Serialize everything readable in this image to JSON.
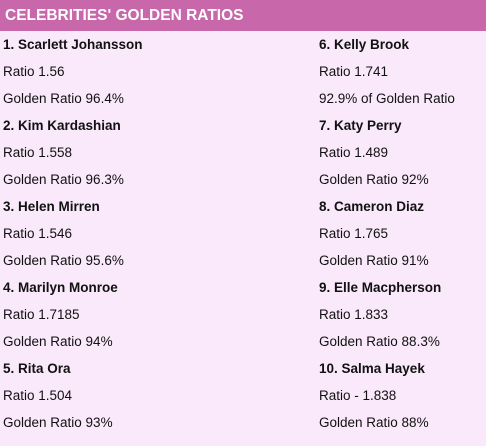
{
  "header": {
    "title": "CELEBRITIES' GOLDEN RATIOS"
  },
  "colors": {
    "header_bg": "#c867aa",
    "panel_bg": "#f9e9fa",
    "header_text": "#ffffff"
  },
  "left_column": [
    {
      "name": "1. Scarlett Johansson",
      "ratio": "Ratio 1.56",
      "golden": "Golden Ratio 96.4%"
    },
    {
      "name": "2. Kim Kardashian",
      "ratio": "Ratio 1.558",
      "golden": "Golden Ratio 96.3%"
    },
    {
      "name": "3. Helen Mirren",
      "ratio": "Ratio 1.546",
      "golden": "Golden Ratio 95.6%"
    },
    {
      "name": "4. Marilyn Monroe",
      "ratio": "Ratio 1.7185",
      "golden": "Golden Ratio 94%"
    },
    {
      "name": "5. Rita Ora",
      "ratio": "Ratio 1.504",
      "golden": "Golden Ratio 93%"
    }
  ],
  "right_column": [
    {
      "name": "6. Kelly Brook",
      "ratio": "Ratio 1.741",
      "golden": "92.9% of Golden Ratio"
    },
    {
      "name": "7. Katy Perry",
      "ratio": "Ratio 1.489",
      "golden": "Golden Ratio 92%"
    },
    {
      "name": "8. Cameron Diaz",
      "ratio": "Ratio 1.765",
      "golden": "Golden Ratio 91%"
    },
    {
      "name": "9. Elle Macpherson",
      "ratio": "Ratio 1.833",
      "golden": "Golden Ratio 88.3%"
    },
    {
      "name": "10. Salma Hayek",
      "ratio": "Ratio - 1.838",
      "golden": "Golden Ratio 88%"
    }
  ]
}
